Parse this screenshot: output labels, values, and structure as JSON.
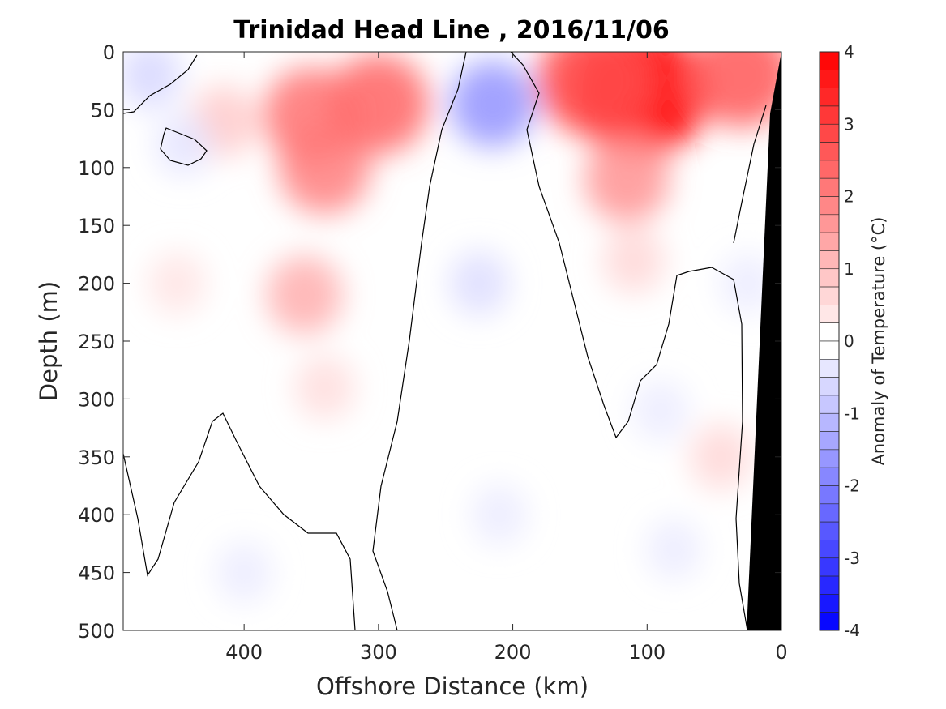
{
  "chart_data": {
    "type": "heatmap",
    "title": "Trinidad Head Line , 2016/11/06",
    "xlabel": "Offshore Distance (km)",
    "ylabel": "Depth (m)",
    "x_reversed": true,
    "xlim": [
      490,
      0
    ],
    "ylim": [
      0,
      500
    ],
    "y_direction": "down",
    "x_ticks": [
      "400",
      "300",
      "200",
      "100",
      "0"
    ],
    "x_tick_values": [
      400,
      300,
      200,
      100,
      0
    ],
    "y_ticks": [
      "0",
      "50",
      "100",
      "150",
      "200",
      "250",
      "300",
      "350",
      "400",
      "450",
      "500"
    ],
    "y_tick_values": [
      0,
      50,
      100,
      150,
      200,
      250,
      300,
      350,
      400,
      450,
      500
    ],
    "colorbar": {
      "label": "Anomaly of Temperature (°C)",
      "range": [
        -4,
        4
      ],
      "step": 0.25,
      "ticks": [
        "4",
        "3",
        "2",
        "1",
        "0",
        "-1",
        "-2",
        "-3",
        "-4"
      ],
      "tick_values": [
        4,
        3,
        2,
        1,
        0,
        -1,
        -2,
        -3,
        -4
      ],
      "low_color": "#0000ff",
      "mid_color": "#ffffff",
      "high_color": "#ff0000"
    },
    "bathymetry_color": "#000000",
    "features": [
      {
        "kind": "warm",
        "x": 415,
        "y": 60,
        "anomaly": 0.8
      },
      {
        "kind": "warm",
        "x": 340,
        "y": 100,
        "anomaly": 1.9
      },
      {
        "kind": "warm",
        "x": 350,
        "y": 55,
        "anomaly": 2.1
      },
      {
        "kind": "warm",
        "x": 300,
        "y": 45,
        "anomaly": 2.3
      },
      {
        "kind": "warm",
        "x": 355,
        "y": 210,
        "anomaly": 1.2
      },
      {
        "kind": "warm",
        "x": 450,
        "y": 200,
        "anomaly": 0.4
      },
      {
        "kind": "warm",
        "x": 340,
        "y": 290,
        "anomaly": 0.5
      },
      {
        "kind": "cool",
        "x": 470,
        "y": 20,
        "anomaly": -0.6
      },
      {
        "kind": "cool",
        "x": 445,
        "y": 80,
        "anomaly": -0.4
      },
      {
        "kind": "cool",
        "x": 215,
        "y": 45,
        "anomaly": -1.6
      },
      {
        "kind": "cool",
        "x": 225,
        "y": 200,
        "anomaly": -0.5
      },
      {
        "kind": "cool",
        "x": 210,
        "y": 400,
        "anomaly": -0.3
      },
      {
        "kind": "cool",
        "x": 400,
        "y": 450,
        "anomaly": -0.3
      },
      {
        "kind": "warm",
        "x": 105,
        "y": 35,
        "anomaly": 3.9
      },
      {
        "kind": "warm",
        "x": 140,
        "y": 25,
        "anomaly": 2.8
      },
      {
        "kind": "warm",
        "x": 30,
        "y": 20,
        "anomaly": 2.5
      },
      {
        "kind": "warm",
        "x": 115,
        "y": 110,
        "anomaly": 1.6
      },
      {
        "kind": "warm",
        "x": 110,
        "y": 180,
        "anomaly": 0.6
      },
      {
        "kind": "warm",
        "x": 45,
        "y": 350,
        "anomaly": 0.6
      },
      {
        "kind": "cool",
        "x": 25,
        "y": 200,
        "anomaly": -0.3
      },
      {
        "kind": "cool",
        "x": 80,
        "y": 430,
        "anomaly": -0.3
      },
      {
        "kind": "cool",
        "x": 90,
        "y": 310,
        "anomaly": -0.3
      }
    ]
  }
}
